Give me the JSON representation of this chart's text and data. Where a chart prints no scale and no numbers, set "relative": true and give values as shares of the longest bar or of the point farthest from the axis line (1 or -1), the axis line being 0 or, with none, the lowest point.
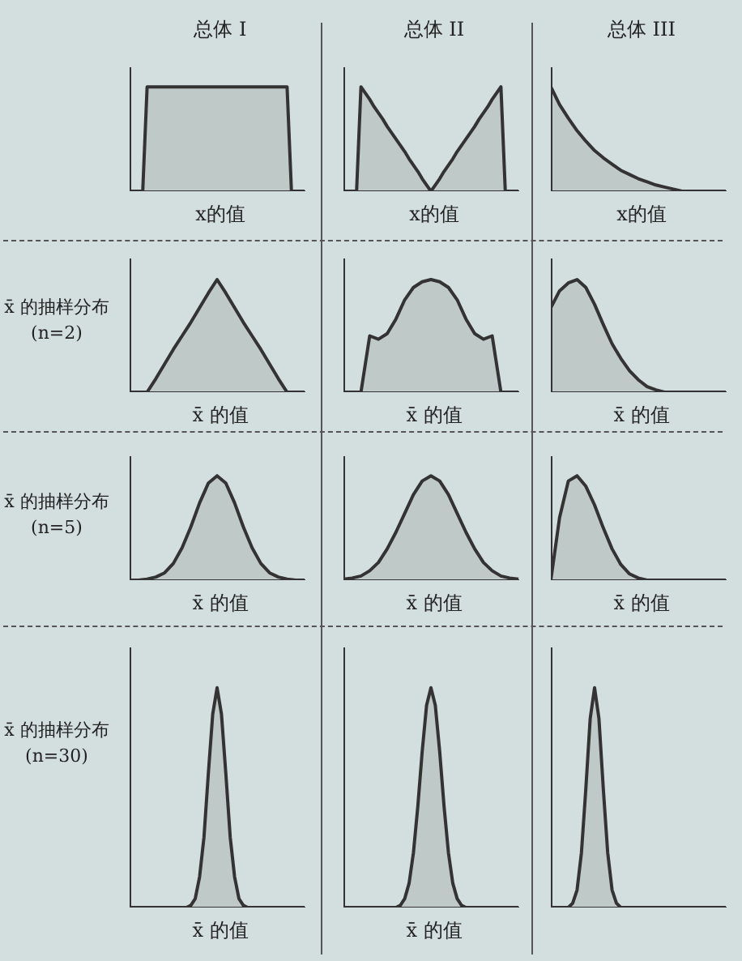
{
  "chart_data": [
    {
      "type": "area",
      "title": "总体 I",
      "xlabel": "x的值",
      "relative": true,
      "tick_labels": false,
      "color": "#333333",
      "categories": [
        null,
        null,
        null,
        null,
        null,
        null,
        null,
        null,
        null,
        null,
        null,
        null,
        null,
        null,
        null,
        null,
        null,
        null,
        null,
        null,
        null,
        null,
        null,
        null,
        null,
        null,
        null,
        null,
        null,
        null,
        null,
        null,
        null,
        null,
        null,
        null,
        null,
        null,
        null,
        null,
        null
      ],
      "values": [
        0,
        0,
        0,
        0,
        1,
        1,
        1,
        1,
        1,
        1,
        1,
        1,
        1,
        1,
        1,
        1,
        1,
        1,
        1,
        1,
        1,
        1,
        1,
        1,
        1,
        1,
        1,
        1,
        1,
        1,
        1,
        1,
        1,
        1,
        1,
        1,
        1,
        0,
        0,
        0,
        0
      ]
    },
    {
      "type": "area",
      "title": "总体 II",
      "xlabel": "x的值",
      "relative": true,
      "tick_labels": false,
      "color": "#333333",
      "categories": [
        null,
        null,
        null,
        null,
        null,
        null,
        null,
        null,
        null,
        null,
        null,
        null,
        null,
        null,
        null,
        null,
        null,
        null,
        null,
        null,
        null,
        null,
        null,
        null,
        null,
        null,
        null,
        null,
        null,
        null,
        null,
        null,
        null,
        null,
        null,
        null,
        null,
        null,
        null,
        null,
        null
      ],
      "values": [
        0,
        0,
        0,
        0,
        1,
        0.94,
        0.88,
        0.81,
        0.75,
        0.69,
        0.62,
        0.56,
        0.5,
        0.44,
        0.38,
        0.31,
        0.25,
        0.19,
        0.12,
        0.06,
        0,
        0.06,
        0.12,
        0.19,
        0.25,
        0.31,
        0.38,
        0.44,
        0.5,
        0.56,
        0.62,
        0.69,
        0.75,
        0.81,
        0.88,
        0.94,
        1,
        0,
        0,
        0,
        0
      ]
    },
    {
      "type": "area",
      "title": "总体 III",
      "xlabel": "x的值",
      "relative": true,
      "tick_labels": false,
      "color": "#333333",
      "categories": [
        null,
        null,
        null,
        null,
        null,
        null,
        null,
        null,
        null,
        null,
        null,
        null,
        null,
        null,
        null,
        null,
        null,
        null,
        null,
        null,
        null
      ],
      "values": [
        1,
        0.83,
        0.7,
        0.58,
        0.48,
        0.39,
        0.32,
        0.26,
        0.2,
        0.16,
        0.12,
        0.09,
        0.06,
        0.04,
        0.02,
        0,
        0,
        0,
        0,
        0,
        0
      ]
    },
    {
      "type": "area",
      "xlabel": "x̄ 的值",
      "annotations": [
        "x̄ 的抽样分布(n=2)"
      ],
      "relative": true,
      "tick_labels": false,
      "color": "#333333",
      "categories": [
        null,
        null,
        null,
        null,
        null,
        null,
        null,
        null,
        null,
        null,
        null,
        null,
        null,
        null,
        null,
        null,
        null,
        null,
        null,
        null,
        null
      ],
      "values": [
        0,
        0,
        0,
        0.12,
        0.25,
        0.38,
        0.5,
        0.62,
        0.75,
        0.88,
        1,
        0.88,
        0.75,
        0.62,
        0.5,
        0.38,
        0.25,
        0.12,
        0,
        0,
        0
      ]
    },
    {
      "type": "area",
      "xlabel": "x̄ 的值",
      "relative": true,
      "tick_labels": false,
      "color": "#333333",
      "categories": [
        null,
        null,
        null,
        null,
        null,
        null,
        null,
        null,
        null,
        null,
        null,
        null,
        null,
        null,
        null,
        null,
        null,
        null,
        null,
        null,
        null
      ],
      "values": [
        0,
        0,
        0,
        0.5,
        0.47,
        0.52,
        0.65,
        0.82,
        0.93,
        0.98,
        1,
        0.98,
        0.93,
        0.82,
        0.65,
        0.52,
        0.47,
        0.5,
        0,
        0,
        0
      ]
    },
    {
      "type": "area",
      "xlabel": "x̄ 的值",
      "relative": true,
      "tick_labels": false,
      "color": "#333333",
      "categories": [
        null,
        null,
        null,
        null,
        null,
        null,
        null,
        null,
        null,
        null,
        null,
        null,
        null,
        null,
        null,
        null,
        null,
        null,
        null,
        null,
        null
      ],
      "values": [
        0.75,
        0.9,
        0.97,
        1,
        0.93,
        0.78,
        0.6,
        0.43,
        0.3,
        0.19,
        0.11,
        0.05,
        0.02,
        0,
        0,
        0,
        0,
        0,
        0,
        0,
        0
      ]
    },
    {
      "type": "area",
      "xlabel": "x̄ 的值",
      "annotations": [
        "x̄ 的抽样分布(n=5)"
      ],
      "relative": true,
      "tick_labels": false,
      "color": "#333333",
      "categories": [
        null,
        null,
        null,
        null,
        null,
        null,
        null,
        null,
        null,
        null,
        null,
        null,
        null,
        null,
        null,
        null,
        null,
        null,
        null,
        null,
        null
      ],
      "values": [
        0,
        0,
        0.01,
        0.03,
        0.07,
        0.16,
        0.31,
        0.51,
        0.74,
        0.93,
        1,
        0.93,
        0.74,
        0.51,
        0.31,
        0.16,
        0.07,
        0.03,
        0.01,
        0,
        0
      ]
    },
    {
      "type": "area",
      "xlabel": "x̄ 的值",
      "relative": true,
      "tick_labels": false,
      "color": "#333333",
      "categories": [
        null,
        null,
        null,
        null,
        null,
        null,
        null,
        null,
        null,
        null,
        null,
        null,
        null,
        null,
        null,
        null,
        null,
        null,
        null,
        null,
        null
      ],
      "values": [
        0.01,
        0.02,
        0.04,
        0.09,
        0.17,
        0.3,
        0.46,
        0.64,
        0.82,
        0.95,
        1,
        0.95,
        0.82,
        0.64,
        0.46,
        0.3,
        0.17,
        0.09,
        0.04,
        0.02,
        0.01
      ]
    },
    {
      "type": "area",
      "xlabel": "x̄ 的值",
      "relative": true,
      "tick_labels": false,
      "color": "#333333",
      "categories": [
        null,
        null,
        null,
        null,
        null,
        null,
        null,
        null,
        null,
        null,
        null,
        null,
        null,
        null,
        null,
        null,
        null,
        null,
        null,
        null,
        null
      ],
      "values": [
        0,
        0.6,
        0.95,
        1,
        0.9,
        0.72,
        0.5,
        0.3,
        0.15,
        0.06,
        0.02,
        0,
        0,
        0,
        0,
        0,
        0,
        0,
        0,
        0,
        0
      ]
    },
    {
      "type": "area",
      "xlabel": "x̄ 的值",
      "annotations": [
        "x̄ 的抽样分布(n=30)"
      ],
      "relative": true,
      "tick_labels": false,
      "color": "#333333",
      "categories": [
        null,
        null,
        null,
        null,
        null,
        null,
        null,
        null,
        null,
        null,
        null,
        null,
        null,
        null,
        null,
        null,
        null,
        null,
        null,
        null,
        null,
        null,
        null,
        null,
        null,
        null,
        null,
        null,
        null,
        null,
        null,
        null,
        null,
        null,
        null,
        null,
        null,
        null,
        null,
        null,
        null
      ],
      "values": [
        0,
        0,
        0,
        0,
        0,
        0,
        0,
        0,
        0,
        0,
        0,
        0,
        0,
        0,
        0.01,
        0.04,
        0.14,
        0.32,
        0.61,
        0.88,
        1,
        0.88,
        0.61,
        0.32,
        0.14,
        0.04,
        0.01,
        0,
        0,
        0,
        0,
        0,
        0,
        0,
        0,
        0,
        0,
        0,
        0,
        0,
        0
      ]
    },
    {
      "type": "area",
      "xlabel": "x̄ 的值",
      "relative": true,
      "tick_labels": false,
      "color": "#333333",
      "categories": [
        null,
        null,
        null,
        null,
        null,
        null,
        null,
        null,
        null,
        null,
        null,
        null,
        null,
        null,
        null,
        null,
        null,
        null,
        null,
        null,
        null,
        null,
        null,
        null,
        null,
        null,
        null,
        null,
        null,
        null,
        null,
        null,
        null,
        null,
        null,
        null,
        null,
        null,
        null,
        null,
        null
      ],
      "values": [
        0,
        0,
        0,
        0,
        0,
        0,
        0,
        0,
        0,
        0,
        0,
        0,
        0,
        0.01,
        0.04,
        0.11,
        0.25,
        0.46,
        0.71,
        0.92,
        1,
        0.92,
        0.71,
        0.46,
        0.25,
        0.11,
        0.04,
        0.01,
        0,
        0,
        0,
        0,
        0,
        0,
        0,
        0,
        0,
        0,
        0,
        0,
        0
      ]
    },
    {
      "type": "area",
      "relative": true,
      "tick_labels": false,
      "color": "#333333",
      "categories": [
        null,
        null,
        null,
        null,
        null,
        null,
        null,
        null,
        null,
        null,
        null,
        null,
        null,
        null,
        null,
        null,
        null,
        null,
        null,
        null,
        null,
        null,
        null,
        null,
        null,
        null,
        null,
        null,
        null,
        null,
        null,
        null,
        null,
        null,
        null,
        null,
        null,
        null,
        null,
        null,
        null
      ],
      "values": [
        0,
        0,
        0,
        0,
        0,
        0.02,
        0.08,
        0.25,
        0.54,
        0.86,
        1,
        0.86,
        0.54,
        0.25,
        0.08,
        0.02,
        0,
        0,
        0,
        0,
        0,
        0,
        0,
        0,
        0,
        0,
        0,
        0,
        0,
        0,
        0,
        0,
        0,
        0,
        0,
        0,
        0,
        0,
        0,
        0,
        0
      ]
    }
  ]
}
